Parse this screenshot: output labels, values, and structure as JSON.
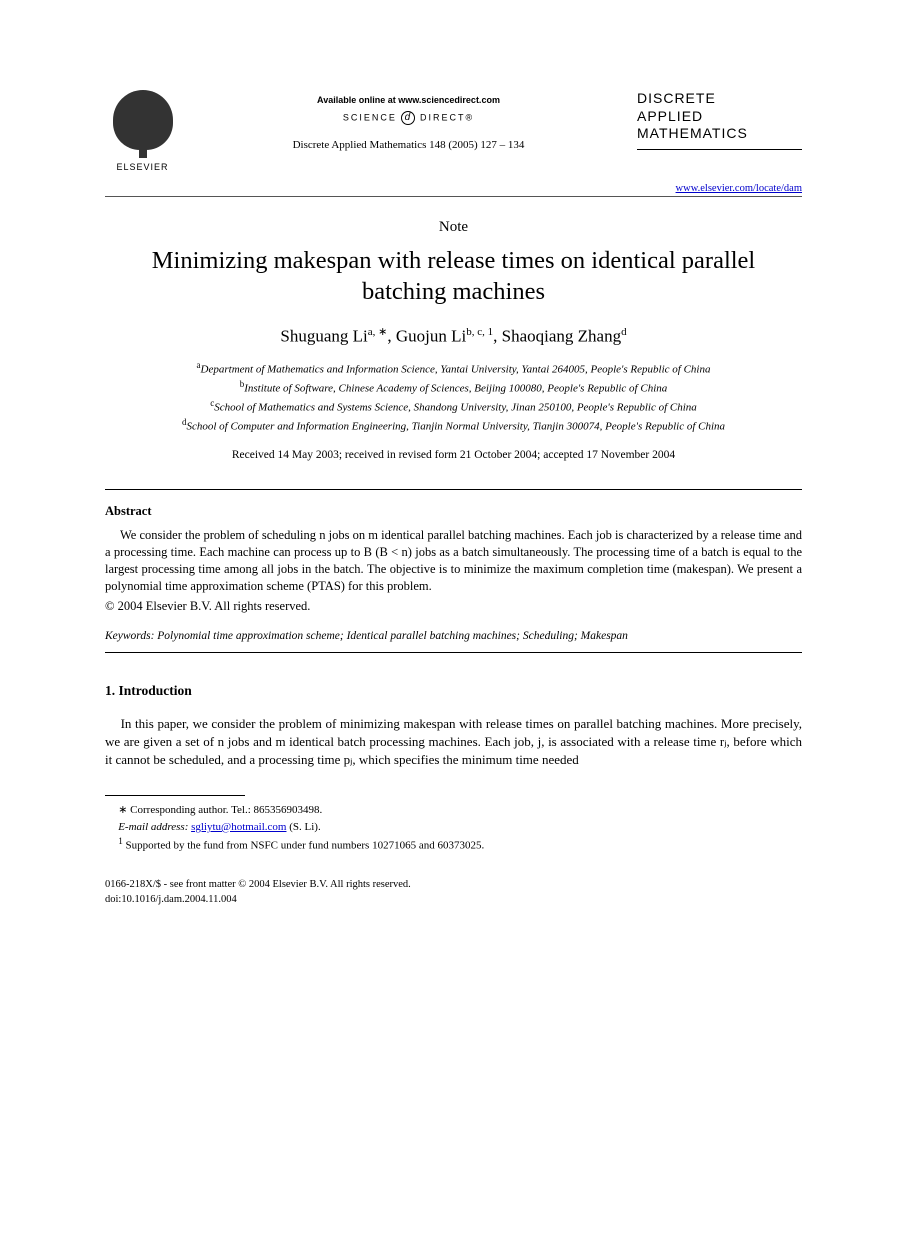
{
  "header": {
    "publisher_label": "ELSEVIER",
    "available_text": "Available online at www.sciencedirect.com",
    "science_direct_left": "SCIENCE",
    "science_direct_right": "DIRECT®",
    "citation": "Discrete Applied Mathematics 148 (2005) 127 – 134",
    "journal_name_line1": "DISCRETE",
    "journal_name_line2": "APPLIED",
    "journal_name_line3": "MATHEMATICS",
    "journal_url": "www.elsevier.com/locate/dam"
  },
  "doc_type": "Note",
  "title": "Minimizing makespan with release times on identical parallel batching machines",
  "authors": {
    "a1_name": "Shuguang Li",
    "a1_sup": "a, ∗",
    "a2_name": "Guojun Li",
    "a2_sup": "b, c, 1",
    "a3_name": "Shaoqiang Zhang",
    "a3_sup": "d"
  },
  "affiliations": {
    "a": "Department of Mathematics and Information Science, Yantai University, Yantai 264005, People's Republic of China",
    "b": "Institute of Software, Chinese Academy of Sciences, Beijing 100080, People's Republic of China",
    "c": "School of Mathematics and Systems Science, Shandong University, Jinan 250100, People's Republic of China",
    "d": "School of Computer and Information Engineering, Tianjin Normal University, Tianjin 300074, People's Republic of China"
  },
  "dates": "Received 14 May 2003; received in revised form 21 October 2004; accepted 17 November 2004",
  "abstract": {
    "heading": "Abstract",
    "text": "We consider the problem of scheduling n jobs on m identical parallel batching machines. Each job is characterized by a release time and a processing time. Each machine can process up to B (B < n) jobs as a batch simultaneously. The processing time of a batch is equal to the largest processing time among all jobs in the batch. The objective is to minimize the maximum completion time (makespan). We present a polynomial time approximation scheme (PTAS) for this problem.",
    "copyright": "© 2004 Elsevier B.V. All rights reserved."
  },
  "keywords": {
    "label": "Keywords:",
    "text": "Polynomial time approximation scheme; Identical parallel batching machines; Scheduling; Makespan"
  },
  "section1": {
    "heading": "1. Introduction",
    "para1": "In this paper, we consider the problem of minimizing makespan with release times on parallel batching machines. More precisely, we are given a set of n jobs and m identical batch processing machines. Each job, j, is associated with a release time rⱼ, before which it cannot be scheduled, and a processing time pⱼ, which specifies the minimum time needed"
  },
  "footnotes": {
    "corr_label": "∗ Corresponding author. Tel.: 865356903498.",
    "email_label": "E-mail address:",
    "email": "sgliytu@hotmail.com",
    "email_suffix": "(S. Li).",
    "fn1": "Supported by the fund from NSFC under fund numbers 10271065 and 60373025."
  },
  "bottom": {
    "line1": "0166-218X/$ - see front matter © 2004 Elsevier B.V. All rights reserved.",
    "line2": "doi:10.1016/j.dam.2004.11.004"
  },
  "colors": {
    "background": "#ffffff",
    "text": "#000000",
    "link": "#0000cc"
  }
}
